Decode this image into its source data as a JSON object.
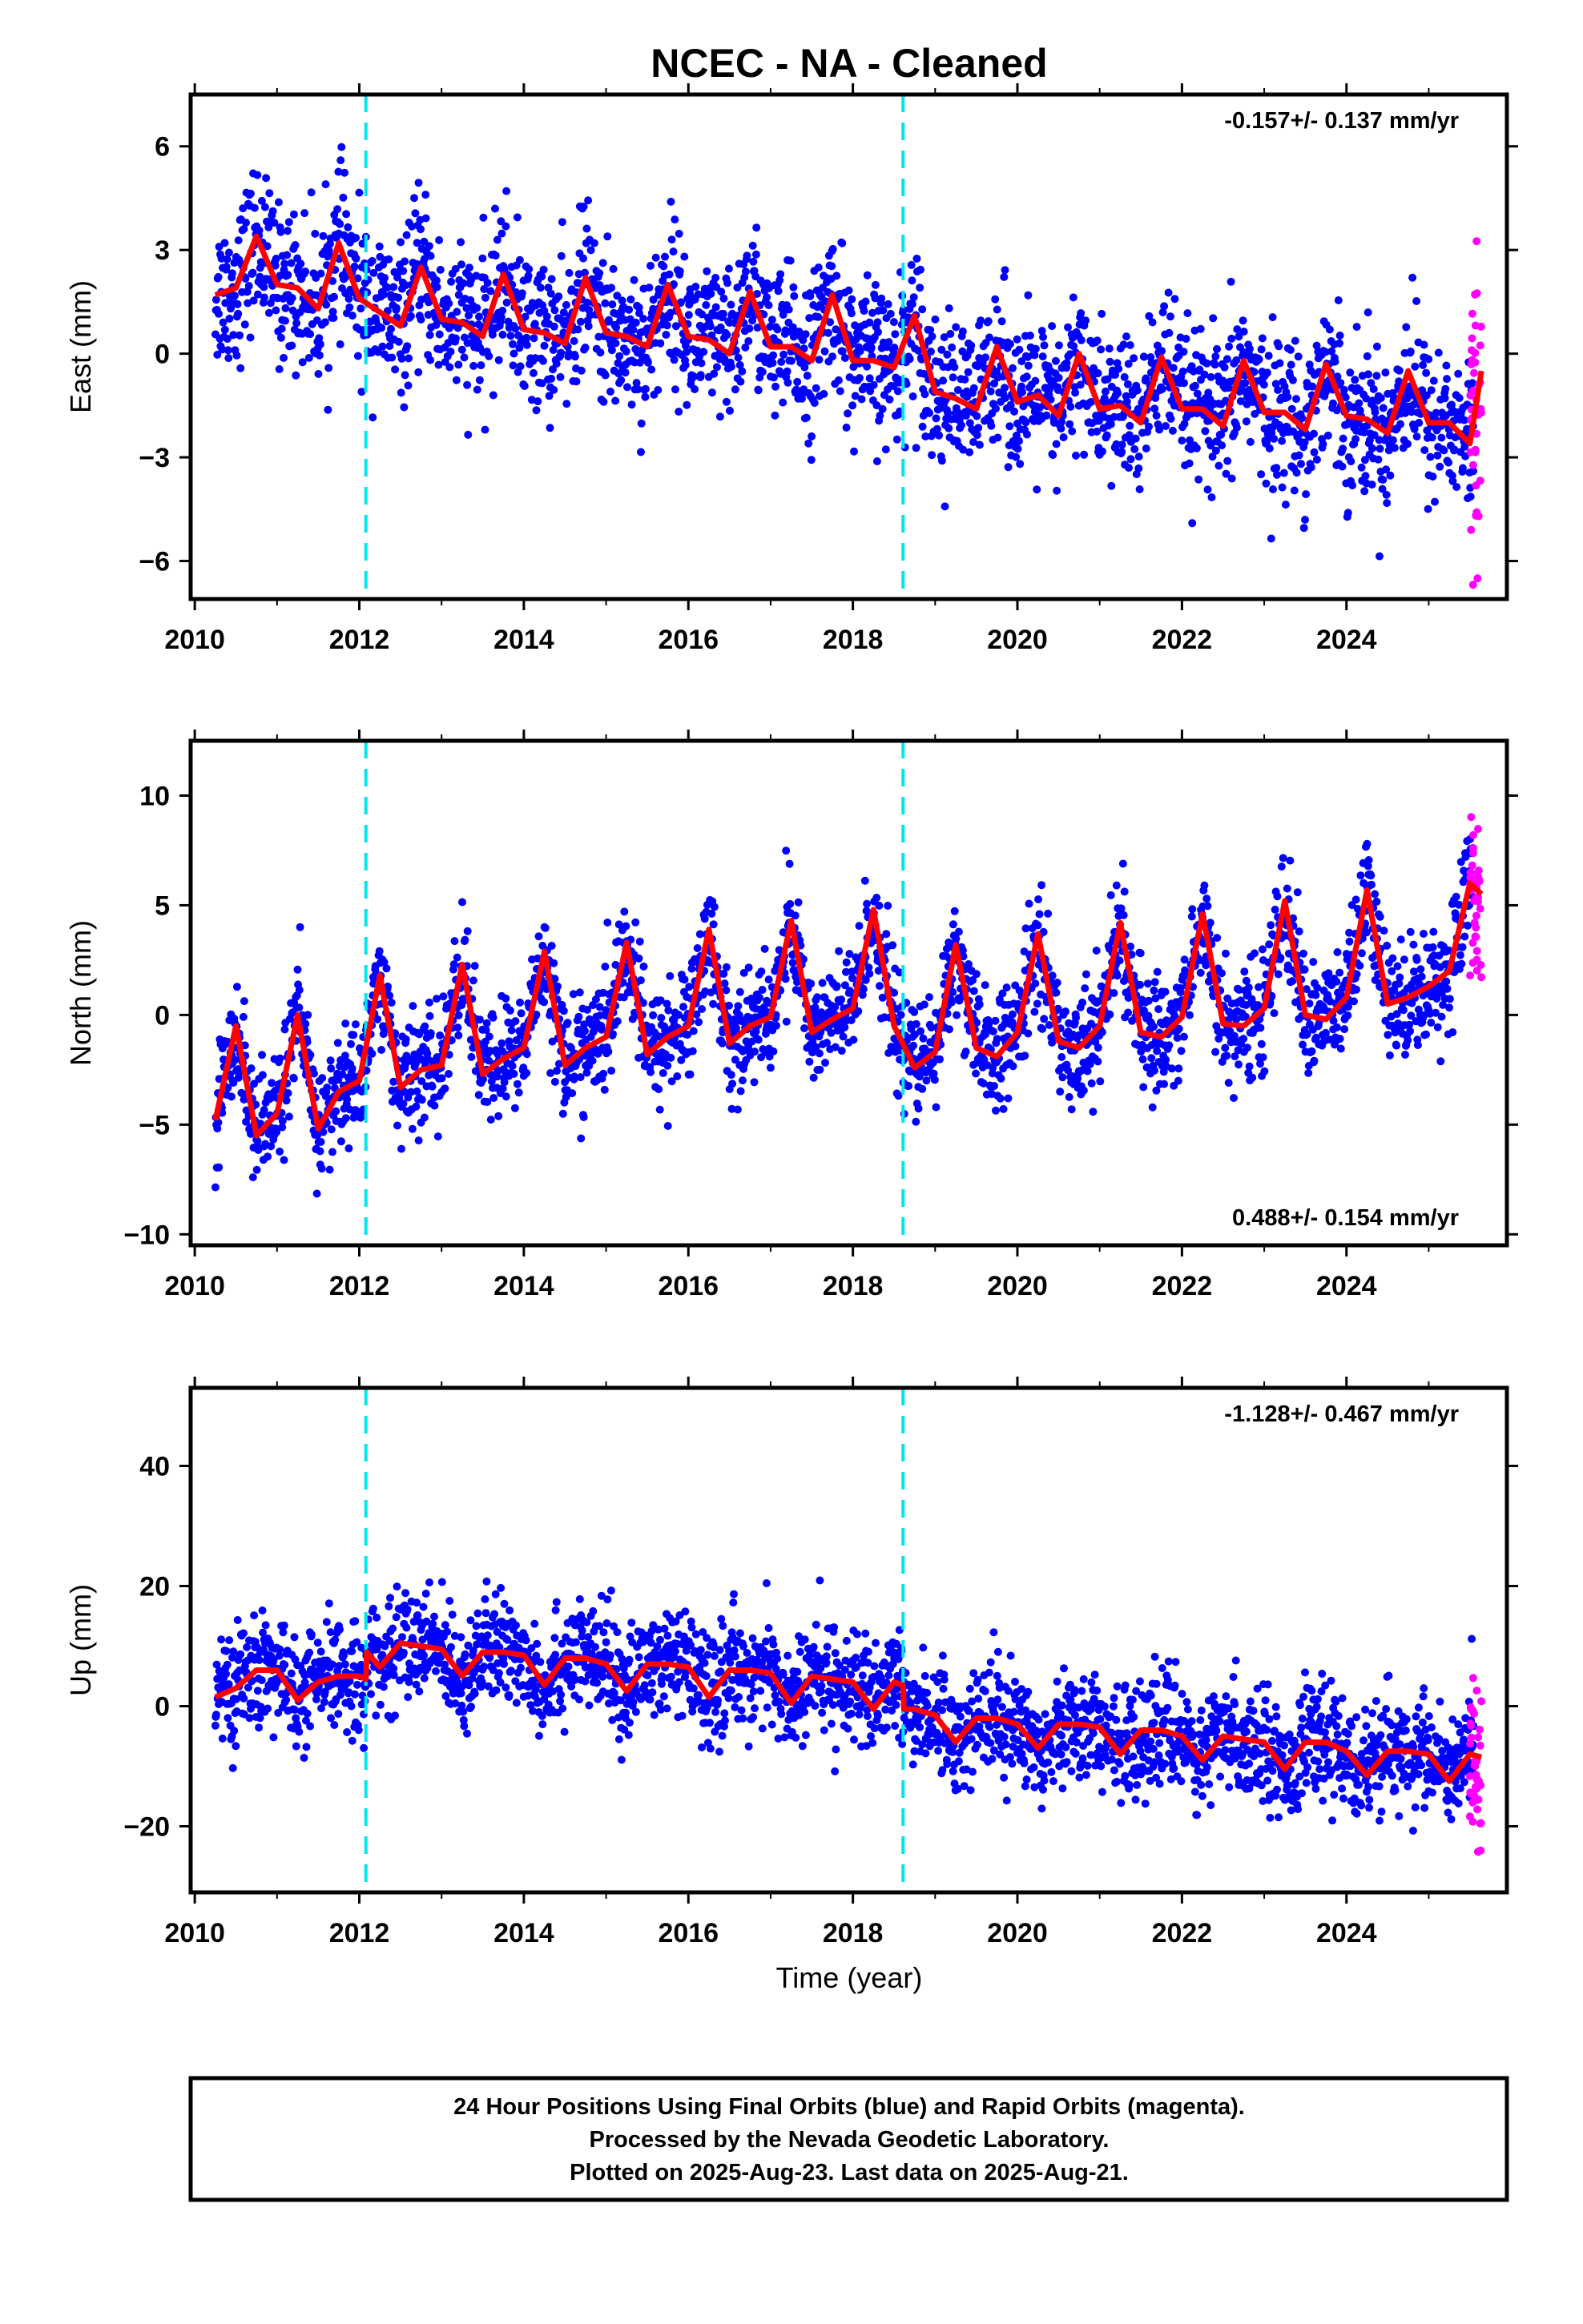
{
  "title": "NCEC  - NA - Cleaned",
  "xlabel": "Time (year)",
  "colors": {
    "final_orbits": "#0000ff",
    "rapid_orbits": "#ff00ff",
    "model": "#ff0000",
    "offsets": "#00e5ee",
    "frame": "#000000"
  },
  "caption": [
    "24 Hour Positions Using Final Orbits (blue) and Rapid Orbits (magenta).",
    "Processed by the Nevada Geodetic Laboratory.",
    "Plotted on 2025-Aug-23. Last data on 2025-Aug-21."
  ],
  "chart_data": [
    {
      "type": "scatter",
      "panel": "east",
      "ylabel": "East (mm)",
      "rate": "-0.157+/- 0.137 mm/yr",
      "rate_position": "top-right",
      "xlim": [
        2009.95,
        2025.95
      ],
      "ylim": [
        -7.1,
        7.5
      ],
      "xticks": [
        2010,
        2012,
        2014,
        2016,
        2018,
        2020,
        2022,
        2024
      ],
      "xtick_labels": [
        "2010",
        "2012",
        "2014",
        "2016",
        "2018",
        "2020",
        "2022",
        "2024"
      ],
      "yticks": [
        -6,
        -3,
        0,
        3,
        6
      ],
      "ytick_labels": [
        "−6",
        "−3",
        "0",
        "3",
        "6"
      ],
      "offset_lines": [
        2012.08,
        2018.61
      ],
      "data_span": [
        2010.25,
        2025.55
      ],
      "rapid_span": [
        2025.5,
        2025.64
      ],
      "scatter_sd": 1.1,
      "model": {
        "x": [
          2010.25,
          2010.5,
          2010.75,
          2011.0,
          2011.25,
          2011.5,
          2011.75,
          2012.0,
          2012.25,
          2012.5,
          2012.75,
          2013.0,
          2013.25,
          2013.5,
          2013.75,
          2014.0,
          2014.25,
          2014.5,
          2014.75,
          2015.0,
          2015.25,
          2015.5,
          2015.75,
          2016.0,
          2016.25,
          2016.5,
          2016.75,
          2017.0,
          2017.25,
          2017.5,
          2017.75,
          2018.0,
          2018.25,
          2018.5,
          2018.75,
          2019.0,
          2019.25,
          2019.5,
          2019.75,
          2020.0,
          2020.25,
          2020.5,
          2020.75,
          2021.0,
          2021.25,
          2021.5,
          2021.75,
          2022.0,
          2022.25,
          2022.5,
          2022.75,
          2023.0,
          2023.25,
          2023.5,
          2023.75,
          2024.0,
          2024.25,
          2024.5,
          2024.75,
          2025.0,
          2025.25,
          2025.5,
          2025.64
        ],
        "y": [
          1.7,
          1.9,
          3.4,
          2.0,
          1.9,
          1.3,
          3.2,
          1.6,
          1.2,
          0.8,
          2.5,
          1.0,
          0.9,
          0.5,
          2.3,
          0.7,
          0.6,
          0.3,
          2.2,
          0.6,
          0.5,
          0.2,
          2.0,
          0.5,
          0.4,
          0.0,
          1.8,
          0.2,
          0.2,
          -0.2,
          1.7,
          -0.2,
          -0.2,
          -0.4,
          1.1,
          -1.1,
          -1.3,
          -1.6,
          0.2,
          -1.4,
          -1.2,
          -1.8,
          0.0,
          -1.6,
          -1.5,
          -2.0,
          -0.1,
          -1.6,
          -1.6,
          -2.1,
          -0.2,
          -1.7,
          -1.7,
          -2.2,
          -0.3,
          -1.8,
          -1.9,
          -2.3,
          -0.5,
          -2.0,
          -2.0,
          -2.6,
          -0.5
        ]
      }
    },
    {
      "type": "scatter",
      "panel": "north",
      "ylabel": "North (mm)",
      "rate": "0.488+/- 0.154 mm/yr",
      "rate_position": "bottom-right",
      "xlim": [
        2009.95,
        2025.95
      ],
      "ylim": [
        -10.5,
        12.5
      ],
      "xticks": [
        2010,
        2012,
        2014,
        2016,
        2018,
        2020,
        2022,
        2024
      ],
      "xtick_labels": [
        "2010",
        "2012",
        "2014",
        "2016",
        "2018",
        "2020",
        "2022",
        "2024"
      ],
      "yticks": [
        -10,
        -5,
        0,
        5,
        10
      ],
      "ytick_labels": [
        "−10",
        "−5",
        "0",
        "5",
        "10"
      ],
      "offset_lines": [
        2012.08,
        2018.61
      ],
      "data_span": [
        2010.25,
        2025.55
      ],
      "rapid_span": [
        2025.5,
        2025.64
      ],
      "scatter_sd": 1.3,
      "model": {
        "x": [
          2010.25,
          2010.5,
          2010.75,
          2011.0,
          2011.25,
          2011.5,
          2011.75,
          2012.0,
          2012.25,
          2012.5,
          2012.75,
          2013.0,
          2013.25,
          2013.5,
          2013.75,
          2014.0,
          2014.25,
          2014.5,
          2014.75,
          2015.0,
          2015.25,
          2015.5,
          2015.75,
          2016.0,
          2016.25,
          2016.5,
          2016.75,
          2017.0,
          2017.25,
          2017.5,
          2017.75,
          2018.0,
          2018.25,
          2018.5,
          2018.75,
          2019.0,
          2019.25,
          2019.5,
          2019.75,
          2020.0,
          2020.25,
          2020.5,
          2020.75,
          2021.0,
          2021.25,
          2021.5,
          2021.75,
          2022.0,
          2022.25,
          2022.5,
          2022.75,
          2023.0,
          2023.25,
          2023.5,
          2023.75,
          2024.0,
          2024.25,
          2024.5,
          2024.75,
          2025.0,
          2025.25,
          2025.5,
          2025.64
        ],
        "y": [
          -4.8,
          -0.5,
          -5.5,
          -4.5,
          0.0,
          -5.2,
          -3.5,
          -3.0,
          1.8,
          -3.3,
          -2.5,
          -2.3,
          2.3,
          -2.7,
          -2.0,
          -1.5,
          2.9,
          -2.3,
          -1.5,
          -1.0,
          3.3,
          -1.8,
          -1.0,
          -0.5,
          3.9,
          -1.3,
          -0.5,
          -0.1,
          4.3,
          -0.8,
          -0.2,
          0.3,
          4.8,
          -0.5,
          -2.4,
          -1.7,
          3.2,
          -1.5,
          -1.9,
          -0.8,
          3.7,
          -1.2,
          -1.5,
          -0.5,
          4.2,
          -0.8,
          -1.0,
          -0.1,
          4.6,
          -0.4,
          -0.5,
          0.3,
          5.2,
          0.0,
          -0.2,
          0.8,
          5.7,
          0.5,
          0.8,
          1.3,
          2.0,
          6.0,
          5.5
        ]
      }
    },
    {
      "type": "scatter",
      "panel": "up",
      "ylabel": "Up (mm)",
      "rate": "-1.128+/- 0.467 mm/yr",
      "rate_position": "top-right",
      "xlim": [
        2009.95,
        2025.95
      ],
      "ylim": [
        -31.0,
        53.0
      ],
      "xticks": [
        2010,
        2012,
        2014,
        2016,
        2018,
        2020,
        2022,
        2024
      ],
      "xtick_labels": [
        "2010",
        "2012",
        "2014",
        "2016",
        "2018",
        "2020",
        "2022",
        "2024"
      ],
      "yticks": [
        -20,
        0,
        20,
        40
      ],
      "ytick_labels": [
        "−20",
        "0",
        "20",
        "40"
      ],
      "offset_lines": [
        2012.08,
        2018.61
      ],
      "data_span": [
        2010.25,
        2025.55
      ],
      "rapid_span": [
        2025.5,
        2025.64
      ],
      "scatter_sd": 4.5,
      "model": {
        "x": [
          2010.25,
          2010.5,
          2010.75,
          2011.0,
          2011.25,
          2011.5,
          2011.75,
          2012.0,
          2012.08,
          2012.09,
          2012.25,
          2012.5,
          2012.75,
          2013.0,
          2013.25,
          2013.5,
          2013.75,
          2014.0,
          2014.25,
          2014.5,
          2014.75,
          2015.0,
          2015.25,
          2015.5,
          2015.75,
          2016.0,
          2016.25,
          2016.5,
          2016.75,
          2017.0,
          2017.25,
          2017.5,
          2017.75,
          2018.0,
          2018.25,
          2018.5,
          2018.61,
          2018.62,
          2018.75,
          2019.0,
          2019.25,
          2019.5,
          2019.75,
          2020.0,
          2020.25,
          2020.5,
          2020.75,
          2021.0,
          2021.25,
          2021.5,
          2021.75,
          2022.0,
          2022.25,
          2022.5,
          2022.75,
          2023.0,
          2023.25,
          2023.5,
          2023.75,
          2024.0,
          2024.25,
          2024.5,
          2024.75,
          2025.0,
          2025.25,
          2025.5,
          2025.64
        ],
        "y": [
          1.5,
          3.0,
          6.0,
          6.0,
          1.0,
          4.0,
          5.0,
          5.0,
          4.5,
          9.0,
          6.5,
          10.5,
          10.0,
          9.5,
          5.0,
          9.0,
          9.0,
          8.5,
          3.5,
          8.0,
          8.0,
          7.0,
          2.5,
          7.0,
          7.0,
          6.5,
          1.5,
          6.0,
          6.0,
          5.5,
          0.5,
          5.0,
          4.5,
          4.0,
          -0.5,
          4.0,
          3.5,
          -0.5,
          -0.5,
          -1.5,
          -6.0,
          -2.0,
          -2.0,
          -3.0,
          -7.0,
          -3.0,
          -3.0,
          -3.5,
          -8.0,
          -4.0,
          -4.0,
          -5.0,
          -9.0,
          -5.0,
          -5.5,
          -6.0,
          -10.5,
          -6.0,
          -6.0,
          -7.5,
          -11.5,
          -7.5,
          -7.5,
          -8.0,
          -12.5,
          -8.0,
          -8.5
        ]
      }
    }
  ]
}
